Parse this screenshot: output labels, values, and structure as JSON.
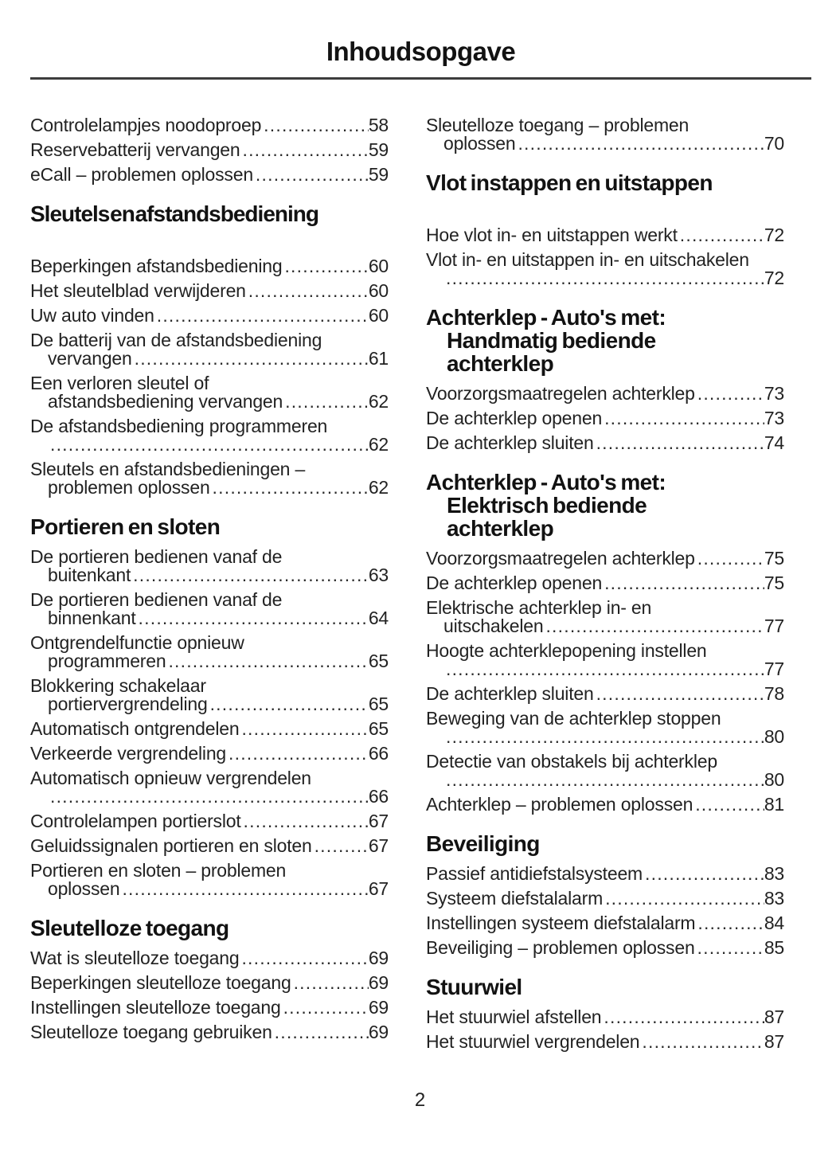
{
  "header": {
    "title": "Inhoudsopgave"
  },
  "footer": {
    "page_number": "2"
  },
  "columns": [
    {
      "blocks": [
        {
          "type": "entries",
          "items": [
            {
              "lines": [
                "Controlelampjes noodoproep"
              ],
              "page": "58"
            },
            {
              "lines": [
                "Reservebatterij vervangen"
              ],
              "page": "59"
            },
            {
              "lines": [
                "eCall – problemen oplossen"
              ],
              "page": "59"
            }
          ]
        },
        {
          "type": "heading",
          "lines": [
            "Sleutels en afstandsbediening"
          ],
          "tight": true,
          "gap_after": true
        },
        {
          "type": "entries",
          "items": [
            {
              "lines": [
                "Beperkingen afstandsbediening"
              ],
              "page": "60"
            },
            {
              "lines": [
                "Het sleutelblad verwijderen"
              ],
              "page": "60"
            },
            {
              "lines": [
                "Uw auto vinden"
              ],
              "page": "60"
            },
            {
              "lines": [
                "De batterij van de afstandsbediening",
                "vervangen"
              ],
              "page": "61"
            },
            {
              "lines": [
                "Een verloren sleutel of",
                "afstandsbediening vervangen"
              ],
              "page": "62"
            },
            {
              "lines": [
                "De afstandsbediening programmeren",
                ""
              ],
              "page": "62"
            },
            {
              "lines": [
                "Sleutels en afstandsbedieningen –",
                "problemen oplossen"
              ],
              "page": "62"
            }
          ]
        },
        {
          "type": "heading",
          "lines": [
            "Portieren en sloten"
          ]
        },
        {
          "type": "entries",
          "items": [
            {
              "lines": [
                "De portieren bedienen vanaf de",
                "buitenkant"
              ],
              "page": "63"
            },
            {
              "lines": [
                "De portieren bedienen vanaf de",
                "binnenkant"
              ],
              "page": "64"
            },
            {
              "lines": [
                "Ontgrendelfunctie opnieuw",
                "programmeren"
              ],
              "page": "65"
            },
            {
              "lines": [
                "Blokkering schakelaar",
                "portiervergrendeling"
              ],
              "page": "65"
            },
            {
              "lines": [
                "Automatisch ontgrendelen"
              ],
              "page": "65"
            },
            {
              "lines": [
                "Verkeerde vergrendeling"
              ],
              "page": "66"
            },
            {
              "lines": [
                "Automatisch opnieuw vergrendelen",
                ""
              ],
              "page": "66"
            },
            {
              "lines": [
                "Controlelampen portierslot"
              ],
              "page": "67"
            },
            {
              "lines": [
                "Geluidssignalen portieren en sloten"
              ],
              "page": "67"
            },
            {
              "lines": [
                "Portieren en sloten – problemen",
                "oplossen"
              ],
              "page": "67"
            }
          ]
        },
        {
          "type": "heading",
          "lines": [
            "Sleutelloze toegang"
          ]
        },
        {
          "type": "entries",
          "items": [
            {
              "lines": [
                "Wat is sleutelloze toegang"
              ],
              "page": "69"
            },
            {
              "lines": [
                "Beperkingen sleutelloze toegang"
              ],
              "page": "69"
            },
            {
              "lines": [
                "Instellingen sleutelloze toegang"
              ],
              "page": "69"
            },
            {
              "lines": [
                "Sleutelloze toegang gebruiken"
              ],
              "page": "69"
            }
          ]
        }
      ]
    },
    {
      "blocks": [
        {
          "type": "entries",
          "items": [
            {
              "lines": [
                "Sleutelloze toegang – problemen",
                "oplossen"
              ],
              "page": "70"
            }
          ]
        },
        {
          "type": "heading",
          "lines": [
            "Vlot instappen en uitstappen"
          ],
          "gap_after": true
        },
        {
          "type": "entries",
          "items": [
            {
              "lines": [
                "Hoe vlot in- en uitstappen werkt"
              ],
              "page": "72"
            },
            {
              "lines": [
                "Vlot in- en uitstappen in- en uitschakelen",
                ""
              ],
              "page": "72"
            }
          ]
        },
        {
          "type": "heading",
          "lines": [
            "Achterklep - Auto's met:",
            "Handmatig bediende",
            "achterklep"
          ]
        },
        {
          "type": "entries",
          "items": [
            {
              "lines": [
                "Voorzorgsmaatregelen achterklep"
              ],
              "page": "73"
            },
            {
              "lines": [
                "De achterklep openen"
              ],
              "page": "73"
            },
            {
              "lines": [
                "De achterklep sluiten"
              ],
              "page": "74"
            }
          ]
        },
        {
          "type": "heading",
          "lines": [
            "Achterklep - Auto's met:",
            "Elektrisch bediende",
            "achterklep"
          ]
        },
        {
          "type": "entries",
          "items": [
            {
              "lines": [
                "Voorzorgsmaatregelen achterklep"
              ],
              "page": "75"
            },
            {
              "lines": [
                "De achterklep openen"
              ],
              "page": "75"
            },
            {
              "lines": [
                "Elektrische achterklep in- en",
                "uitschakelen"
              ],
              "page": "77"
            },
            {
              "lines": [
                "Hoogte achterklepopening instellen",
                ""
              ],
              "page": "77"
            },
            {
              "lines": [
                "De achterklep sluiten"
              ],
              "page": "78"
            },
            {
              "lines": [
                "Beweging van de achterklep stoppen",
                ""
              ],
              "page": "80"
            },
            {
              "lines": [
                "Detectie van obstakels bij achterklep",
                ""
              ],
              "page": "80"
            },
            {
              "lines": [
                "Achterklep – problemen oplossen"
              ],
              "page": "81"
            }
          ]
        },
        {
          "type": "heading",
          "lines": [
            "Beveiliging"
          ]
        },
        {
          "type": "entries",
          "items": [
            {
              "lines": [
                "Passief antidiefstalsysteem"
              ],
              "page": "83"
            },
            {
              "lines": [
                "Systeem diefstalalarm"
              ],
              "page": "83"
            },
            {
              "lines": [
                "Instellingen systeem diefstalalarm"
              ],
              "page": "84"
            },
            {
              "lines": [
                "Beveiliging – problemen oplossen"
              ],
              "page": "85"
            }
          ]
        },
        {
          "type": "heading",
          "lines": [
            "Stuurwiel"
          ]
        },
        {
          "type": "entries",
          "items": [
            {
              "lines": [
                "Het stuurwiel afstellen"
              ],
              "page": "87"
            },
            {
              "lines": [
                "Het stuurwiel vergrendelen"
              ],
              "page": "87"
            }
          ]
        }
      ]
    }
  ]
}
